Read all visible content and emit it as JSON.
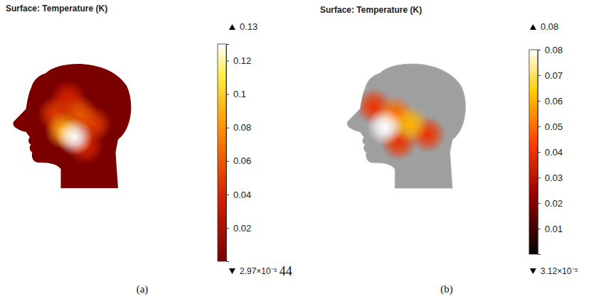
{
  "chart_data": [
    {
      "type": "surface",
      "title": "Surface: Temperature (K)",
      "label": "(a)",
      "spots": [
        {
          "x": 0.48,
          "y": 0.3,
          "value": 0.04
        },
        {
          "x": 0.62,
          "y": 0.67,
          "value": 0.04
        },
        {
          "x": 0.38,
          "y": 0.42,
          "value": 0.05
        },
        {
          "x": 0.68,
          "y": 0.5,
          "value": 0.05
        },
        {
          "x": 0.57,
          "y": 0.42,
          "value": 0.06
        },
        {
          "x": 0.44,
          "y": 0.55,
          "value": 0.09
        },
        {
          "x": 0.53,
          "y": 0.6,
          "value": 0.13
        }
      ],
      "colorbar": {
        "range": [
          2.97e-05,
          0.13
        ],
        "ticks": [
          0.02,
          0.04,
          0.06,
          0.08,
          0.1,
          0.12
        ],
        "max": {
          "value": 0.13,
          "label": "0.13"
        },
        "min": {
          "value": 2.97e-05,
          "label": "2.97×10⁻⁵"
        }
      },
      "annotation": "44"
    },
    {
      "type": "surface",
      "title": "Surface: Temperature (K)",
      "label": "(b)",
      "spots": [
        {
          "x": 0.25,
          "y": 0.36,
          "value": 0.04
        },
        {
          "x": 0.68,
          "y": 0.58,
          "value": 0.04
        },
        {
          "x": 0.45,
          "y": 0.64,
          "value": 0.04
        },
        {
          "x": 0.42,
          "y": 0.42,
          "value": 0.05
        },
        {
          "x": 0.54,
          "y": 0.5,
          "value": 0.06
        },
        {
          "x": 0.34,
          "y": 0.52,
          "value": 0.08
        }
      ],
      "colorbar": {
        "range": [
          3.12e-05,
          0.08
        ],
        "ticks": [
          0.01,
          0.02,
          0.03,
          0.04,
          0.05,
          0.06,
          0.07,
          0.08
        ],
        "max": {
          "value": 0.08,
          "label": "0.08"
        },
        "min": {
          "value": 3.12e-05,
          "label": "3.12×10⁻⁵"
        }
      }
    }
  ]
}
